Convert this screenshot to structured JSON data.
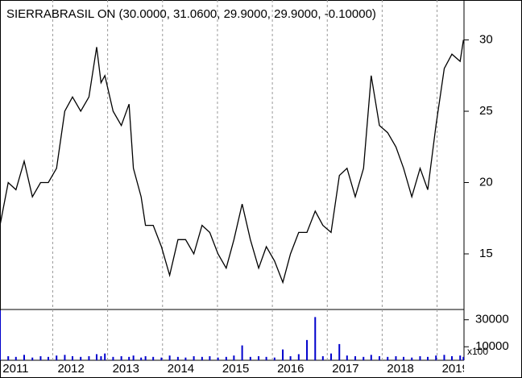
{
  "chart_data": [
    {
      "type": "line",
      "title": "SIERRABRASIL ON (30.0000, 31.0600, 29.9000, 29.9000, -0.10000)",
      "x": [
        2011.04,
        2011.19,
        2011.33,
        2011.48,
        2011.63,
        2011.78,
        2011.92,
        2012.07,
        2012.22,
        2012.36,
        2012.51,
        2012.66,
        2012.8,
        2012.88,
        2012.95,
        2013.1,
        2013.25,
        2013.39,
        2013.47,
        2013.61,
        2013.69,
        2013.83,
        2013.98,
        2014.13,
        2014.28,
        2014.42,
        2014.57,
        2014.72,
        2014.86,
        2015.01,
        2015.16,
        2015.3,
        2015.45,
        2015.6,
        2015.75,
        2015.89,
        2016.04,
        2016.19,
        2016.33,
        2016.48,
        2016.63,
        2016.78,
        2016.92,
        2017.07,
        2017.22,
        2017.36,
        2017.51,
        2017.66,
        2017.8,
        2017.95,
        2018.1,
        2018.25,
        2018.39,
        2018.54,
        2018.69,
        2018.83,
        2018.98,
        2019.13,
        2019.27,
        2019.42,
        2019.48
      ],
      "series": [
        {
          "color": "#000000",
          "values": [
            17,
            20,
            19.5,
            21.5,
            19,
            20,
            20,
            21,
            25,
            26,
            25,
            26,
            29.5,
            27,
            27.5,
            25,
            24,
            25.5,
            21,
            19,
            17,
            17,
            15.5,
            13.5,
            16,
            16,
            15,
            17,
            16.5,
            15,
            14,
            16,
            18.5,
            16,
            14,
            15.5,
            14.5,
            13,
            15,
            16.5,
            16.5,
            18,
            17,
            16.5,
            20.5,
            21,
            19,
            21,
            27.5,
            24,
            23.5,
            22.5,
            21,
            19,
            21,
            19.5,
            24,
            28,
            29,
            28.5,
            30
          ]
        }
      ],
      "ylim": [
        11.1,
        32.8
      ],
      "yticks": [
        15,
        20,
        25,
        30
      ]
    },
    {
      "type": "bar",
      "label": "x100",
      "color": "#0000cc",
      "x": [
        2011.04,
        2011.19,
        2011.33,
        2011.48,
        2011.63,
        2011.78,
        2011.92,
        2012.07,
        2012.22,
        2012.36,
        2012.51,
        2012.66,
        2012.8,
        2012.88,
        2012.95,
        2013.1,
        2013.25,
        2013.39,
        2013.47,
        2013.61,
        2013.69,
        2013.83,
        2013.98,
        2014.13,
        2014.28,
        2014.42,
        2014.57,
        2014.72,
        2014.86,
        2015.01,
        2015.16,
        2015.3,
        2015.45,
        2015.6,
        2015.75,
        2015.89,
        2016.04,
        2016.19,
        2016.33,
        2016.48,
        2016.63,
        2016.78,
        2016.92,
        2017.07,
        2017.22,
        2017.36,
        2017.51,
        2017.66,
        2017.8,
        2017.95,
        2018.1,
        2018.25,
        2018.39,
        2018.54,
        2018.69,
        2018.83,
        2018.98,
        2019.13,
        2019.27,
        2019.42,
        2019.48
      ],
      "values": [
        37000,
        3000,
        2500,
        4000,
        2000,
        3000,
        2500,
        3500,
        4000,
        3000,
        2500,
        3000,
        4500,
        3000,
        5000,
        2500,
        3000,
        2500,
        3500,
        2000,
        3000,
        2500,
        2000,
        3500,
        2500,
        2000,
        3000,
        2500,
        3000,
        2000,
        2500,
        3500,
        11000,
        2500,
        3000,
        2500,
        2000,
        8000,
        3000,
        4500,
        15000,
        32000,
        3000,
        5000,
        12000,
        3500,
        3000,
        2500,
        4000,
        3000,
        2500,
        3000,
        2500,
        2000,
        3000,
        2500,
        3500,
        4000,
        3000,
        3500,
        2500
      ],
      "ylim": [
        0,
        37000
      ],
      "yticks": [
        10000,
        30000
      ],
      "xlim": [
        2011.04,
        2019.49
      ],
      "xticks": [
        2011,
        2012,
        2013,
        2014,
        2015,
        2016,
        2017,
        2018,
        2019
      ]
    }
  ]
}
